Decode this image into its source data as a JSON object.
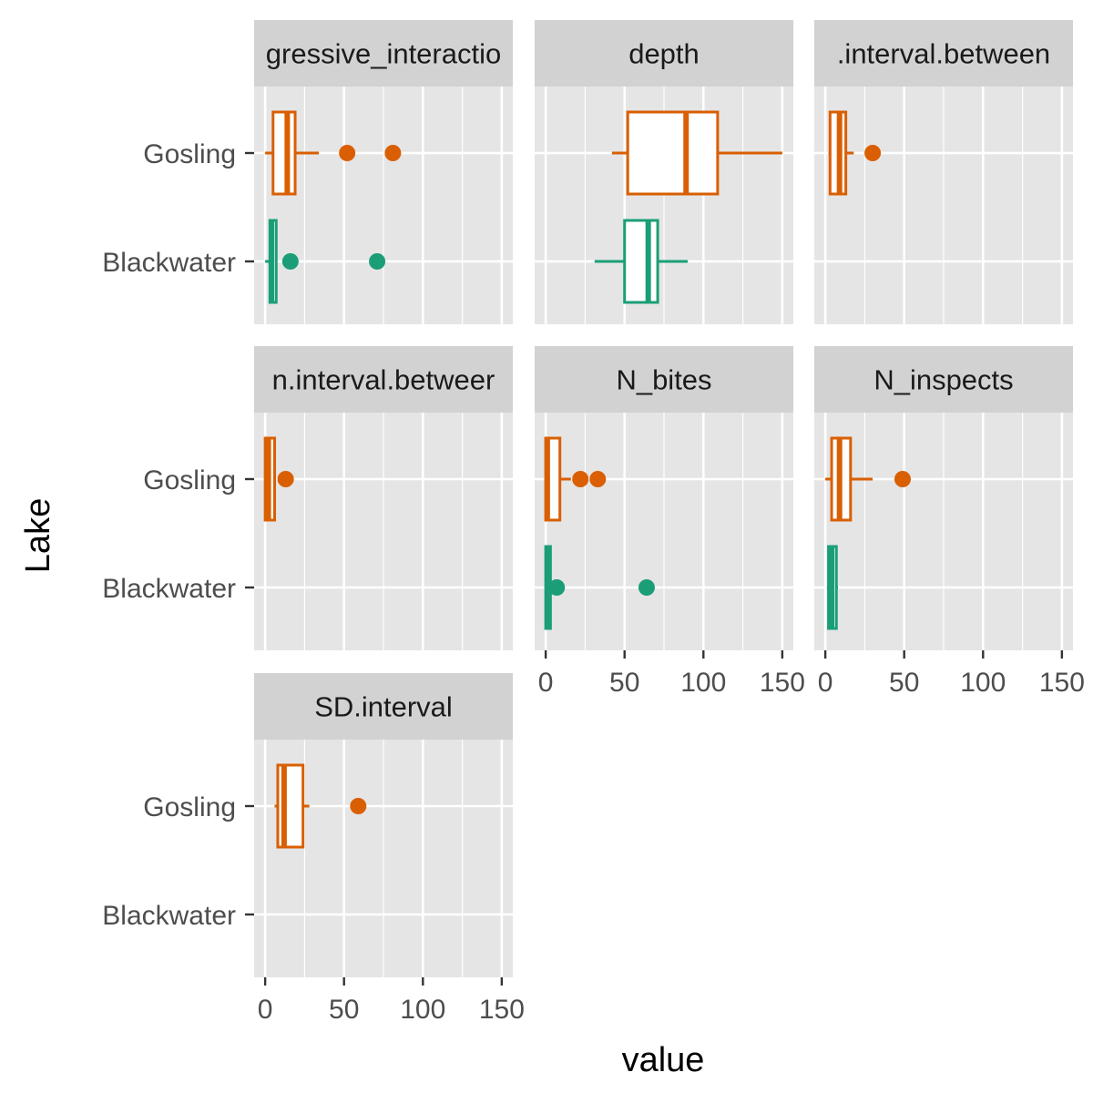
{
  "chart_data": {
    "type": "boxplot",
    "facet_layout": "wrap, 3 columns, shared x scale",
    "xlabel": "value",
    "ylabel": "Lake",
    "xlim": [
      -7,
      157
    ],
    "x_ticks": [
      0,
      50,
      100,
      150
    ],
    "x_tick_labels": [
      "0",
      "50",
      "100",
      "150"
    ],
    "y_categories": [
      "Gosling",
      "Blackwater"
    ],
    "colors": {
      "Gosling": "#d95f02",
      "Blackwater": "#1b9e77"
    },
    "panel_background": "#e5e5e5",
    "strip_background": "#d2d2d2",
    "grid": true,
    "legend": "none",
    "panels": [
      {
        "title": "gressive_interactio",
        "boxes": [
          {
            "lake": "Gosling",
            "whisker_low": 0,
            "q1": 5,
            "median": 14,
            "q3": 19,
            "whisker_high": 34,
            "outliers": [
              52,
              81
            ]
          },
          {
            "lake": "Blackwater",
            "whisker_low": 0,
            "q1": 3,
            "median": 4,
            "q3": 7,
            "whisker_high": 7,
            "outliers": [
              16,
              71
            ]
          }
        ]
      },
      {
        "title": "depth",
        "boxes": [
          {
            "lake": "Gosling",
            "whisker_low": 42,
            "q1": 52,
            "median": 89,
            "q3": 109,
            "whisker_high": 150,
            "outliers": []
          },
          {
            "lake": "Blackwater",
            "whisker_low": 31,
            "q1": 50,
            "median": 65,
            "q3": 71,
            "whisker_high": 90,
            "outliers": []
          }
        ]
      },
      {
        "title": ".interval.between",
        "boxes": [
          {
            "lake": "Gosling",
            "whisker_low": 2,
            "q1": 3,
            "median": 9,
            "q3": 13,
            "whisker_high": 18,
            "outliers": [
              30
            ]
          }
        ]
      },
      {
        "title": "n.interval.betweer",
        "boxes": [
          {
            "lake": "Gosling",
            "whisker_low": 0,
            "q1": 0,
            "median": 2,
            "q3": 6,
            "whisker_high": 6,
            "outliers": [
              13
            ]
          }
        ]
      },
      {
        "title": "N_bites",
        "boxes": [
          {
            "lake": "Gosling",
            "whisker_low": 0,
            "q1": 0,
            "median": 1,
            "q3": 9,
            "whisker_high": 16,
            "outliers": [
              22,
              33
            ]
          },
          {
            "lake": "Blackwater",
            "whisker_low": 0,
            "q1": 0,
            "median": 2,
            "q3": 3,
            "whisker_high": 3,
            "outliers": [
              7,
              64
            ]
          }
        ]
      },
      {
        "title": "N_inspects",
        "boxes": [
          {
            "lake": "Gosling",
            "whisker_low": 0,
            "q1": 4,
            "median": 9,
            "q3": 16,
            "whisker_high": 30,
            "outliers": [
              49
            ]
          },
          {
            "lake": "Blackwater",
            "whisker_low": 1,
            "q1": 2,
            "median": 4,
            "q3": 7,
            "whisker_high": 8,
            "outliers": []
          }
        ]
      },
      {
        "title": "SD.interval",
        "boxes": [
          {
            "lake": "Gosling",
            "whisker_low": 6,
            "q1": 8,
            "median": 12,
            "q3": 24,
            "whisker_high": 28,
            "outliers": [
              59
            ]
          }
        ]
      }
    ]
  }
}
